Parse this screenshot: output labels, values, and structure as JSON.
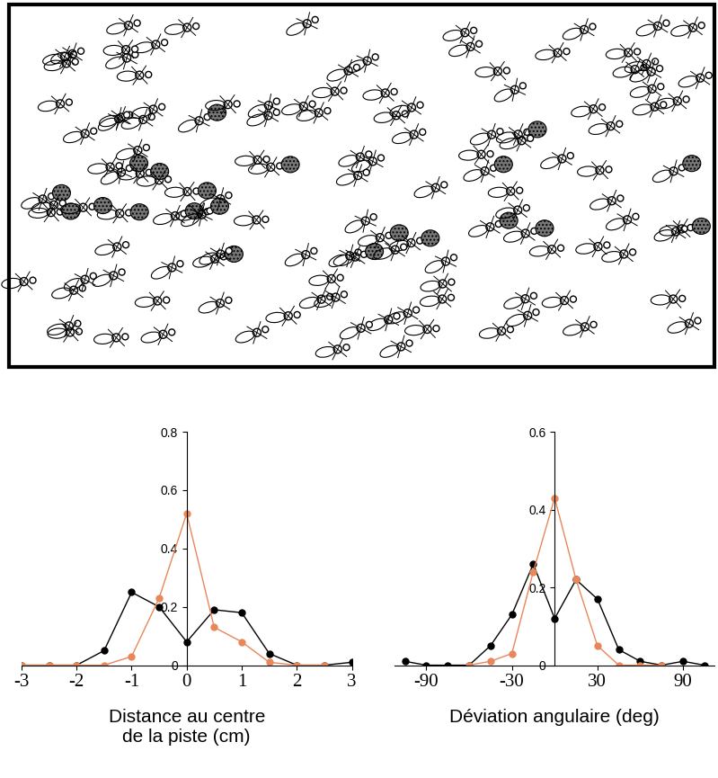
{
  "chart_data": [
    {
      "type": "line",
      "x_label": "Distance au centre\nde la piste (cm)",
      "x": [
        -3,
        -2.5,
        -2,
        -1.5,
        -1,
        -0.5,
        0,
        0.5,
        1,
        1.5,
        2,
        2.5,
        3
      ],
      "series": [
        {
          "color": "#000000",
          "marker": "o",
          "line_style": "solid",
          "values": [
            0,
            0,
            0,
            0.05,
            0.25,
            0.2,
            0.08,
            0.19,
            0.18,
            0.04,
            0,
            0,
            0.01
          ]
        },
        {
          "color": "#e8875a",
          "marker": "o",
          "line_style": "solid",
          "values": [
            0,
            0,
            0,
            0,
            0.03,
            0.23,
            0.52,
            0.13,
            0.08,
            0.01,
            0,
            0,
            null
          ]
        }
      ],
      "xlim": [
        -3,
        3
      ],
      "xticks": [
        -3,
        -2,
        -1,
        0,
        1,
        2,
        3
      ],
      "ylim": [
        0,
        0.8
      ],
      "yticks": [
        0,
        0.2,
        0.4,
        0.6,
        0.8
      ],
      "grid": false
    },
    {
      "type": "line",
      "x_label": "Déviation angulaire (deg)",
      "x": [
        -105,
        -90,
        -75,
        -60,
        -45,
        -30,
        -15,
        0,
        15,
        30,
        45,
        60,
        75,
        90,
        105
      ],
      "series": [
        {
          "color": "#000000",
          "marker": "o",
          "line_style": "solid",
          "values": [
            0.01,
            0,
            0,
            0,
            0.05,
            0.13,
            0.26,
            0.12,
            0.22,
            0.17,
            0.04,
            0.01,
            0,
            0.01,
            0
          ]
        },
        {
          "color": "#e8875a",
          "marker": "o",
          "line_style": "solid",
          "values": [
            null,
            null,
            null,
            0,
            0.01,
            0.03,
            0.24,
            0.43,
            0.22,
            0.05,
            0,
            0,
            0,
            null,
            null
          ]
        }
      ],
      "xlim": [
        -112,
        112
      ],
      "xticks": [
        -90,
        -30,
        30,
        90
      ],
      "ylim": [
        0,
        0.6
      ],
      "yticks": [
        0,
        0.2,
        0.4,
        0.6
      ],
      "grid": false
    }
  ]
}
